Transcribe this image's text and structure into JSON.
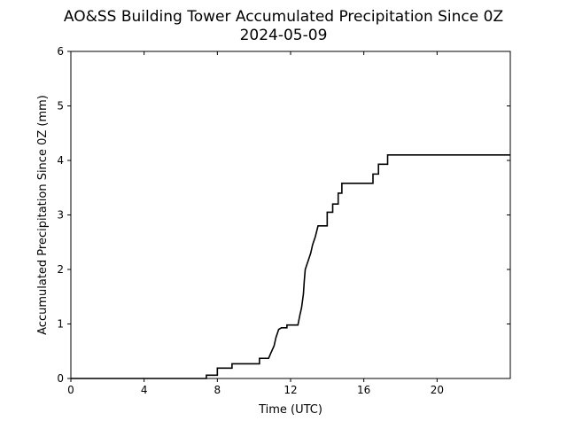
{
  "chart_data": {
    "type": "line",
    "title": "AO&SS Building Tower Accumulated Precipitation Since 0Z",
    "subtitle": "2024-05-09",
    "xlabel": "Time (UTC)",
    "ylabel": "Accumulated Precipitation Since 0Z (mm)",
    "xlim": [
      0,
      24
    ],
    "ylim": [
      0,
      6
    ],
    "x_ticks": [
      0,
      4,
      8,
      12,
      16,
      20
    ],
    "x_tick_labels": [
      "0",
      "4",
      "8",
      "12",
      "16",
      "20"
    ],
    "y_ticks": [
      0,
      1,
      2,
      3,
      4,
      5,
      6
    ],
    "y_tick_labels": [
      "0",
      "1",
      "2",
      "3",
      "4",
      "5",
      "6"
    ],
    "grid": false,
    "line_color": "#000000",
    "series": [
      {
        "x": [
          0,
          7.4,
          7.4,
          8.0,
          8.0,
          8.8,
          8.8,
          10.3,
          10.3,
          10.8,
          10.9,
          11.1,
          11.2,
          11.35,
          11.5,
          11.8,
          11.8,
          12.4,
          12.5,
          12.6,
          12.7,
          12.75,
          12.8,
          12.9,
          13.0,
          13.1,
          13.2,
          13.35,
          13.5,
          13.7,
          14.0,
          14.0,
          14.3,
          14.3,
          14.6,
          14.6,
          14.8,
          14.8,
          16.5,
          16.5,
          16.8,
          16.8,
          17.3,
          17.3,
          24
        ],
        "y": [
          0,
          0,
          0.06,
          0.06,
          0.19,
          0.19,
          0.27,
          0.27,
          0.37,
          0.37,
          0.45,
          0.6,
          0.75,
          0.9,
          0.93,
          0.93,
          0.98,
          0.98,
          1.15,
          1.3,
          1.55,
          1.8,
          2.0,
          2.1,
          2.2,
          2.3,
          2.45,
          2.6,
          2.8,
          2.8,
          2.8,
          3.05,
          3.05,
          3.2,
          3.2,
          3.4,
          3.4,
          3.58,
          3.58,
          3.75,
          3.75,
          3.93,
          3.93,
          4.1,
          4.1
        ]
      }
    ]
  }
}
